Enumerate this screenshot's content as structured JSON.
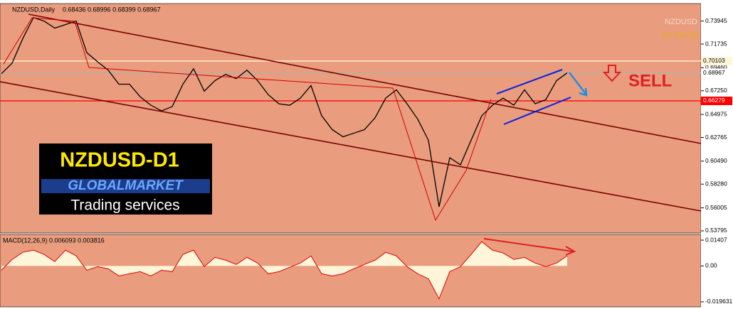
{
  "chart_data": [
    {
      "type": "line",
      "title": "NZDUSD,Daily",
      "ohlc_text": "0.68436 0.68996 0.68399 0.68967",
      "symbol_label": "NZDUSD",
      "timer": "D1   0:31:18",
      "logo_title": "NZDUSD-D1",
      "logo_brand": "GLOBALMARKET",
      "logo_subtitle": "Trading services",
      "signal": "SELL",
      "color": "#000000",
      "background": "#e99d7e",
      "values": [
        0.6889,
        0.699,
        0.7226,
        0.7428,
        0.7394,
        0.7327,
        0.736,
        0.7394,
        0.7091,
        0.7004,
        0.6923,
        0.6788,
        0.6788,
        0.6667,
        0.6586,
        0.6532,
        0.6573,
        0.6788,
        0.6936,
        0.6721,
        0.6822,
        0.6882,
        0.6842,
        0.6923,
        0.6822,
        0.6687,
        0.66,
        0.6586,
        0.6654,
        0.6775,
        0.6485,
        0.6351,
        0.6283,
        0.6317,
        0.6351,
        0.6465,
        0.6654,
        0.6734,
        0.66,
        0.6452,
        0.625,
        0.5611,
        0.6082,
        0.6014,
        0.625,
        0.6485,
        0.6586,
        0.6654,
        0.6586,
        0.6734,
        0.66,
        0.664,
        0.6822,
        0.6897
      ],
      "ylim": [
        0.5359,
        0.7542
      ],
      "yticks": [
        0.73945,
        0.71735,
        {
          "value": 0.6946,
          "label": "0.69460"
        },
        {
          "value": 0.6725,
          "label": "0.67250"
        },
        0.64975,
        0.62765,
        {
          "value": 0.6049,
          "label": "0.60490"
        },
        {
          "value": 0.5828,
          "label": "0.58280"
        },
        0.56005,
        0.53795
      ],
      "price_lines": [
        {
          "value": 0.70103,
          "color": "#fff5d8",
          "label_bg": "#fff5d8",
          "label_color": "#000000"
        },
        {
          "value": 0.68967,
          "color": "#b0b0b0",
          "label_bg": "#ffffff",
          "label_color": "#000000"
        },
        {
          "value": 0.66279,
          "color": "#ff0000",
          "label_bg": "#ff0000",
          "label_color": "#ffffff"
        }
      ]
    },
    {
      "type": "area",
      "title": "MACD(12,26,9) 0.006093 0.003816",
      "color": "#fff5d8",
      "outline": "#e00000",
      "values": [
        -0.00235,
        0.00352,
        0.00743,
        0.0086,
        0.00626,
        0.00235,
        0.0086,
        0.00547,
        -0.00235,
        -0.00039,
        -0.00156,
        -0.00547,
        -0.0043,
        -0.00313,
        -0.00547,
        -0.00235,
        -0.00313,
        0.00626,
        0.0086,
        -0.00039,
        0.00469,
        0.00313,
        0.00078,
        0.00469,
        0.00156,
        -0.0043,
        -0.00313,
        -0.00078,
        0.00156,
        0.00547,
        -0.0043,
        -0.00547,
        -0.0043,
        -0.00156,
        0.00078,
        0.00313,
        0.00743,
        0.00547,
        -0.00039,
        -0.0043,
        -0.00704,
        -0.01799,
        -0.00313,
        -0.00039,
        0.00626,
        0.01329,
        0.0086,
        0.00704,
        0.00352,
        0.00469,
        0.00156,
        -0.00039,
        0.00156,
        0.00547
      ],
      "ylim": [
        -0.02237,
        0.0172
      ],
      "yticks": [
        0.01407,
        {
          "value": 0,
          "label": "0.00"
        },
        -0.019631
      ]
    }
  ]
}
